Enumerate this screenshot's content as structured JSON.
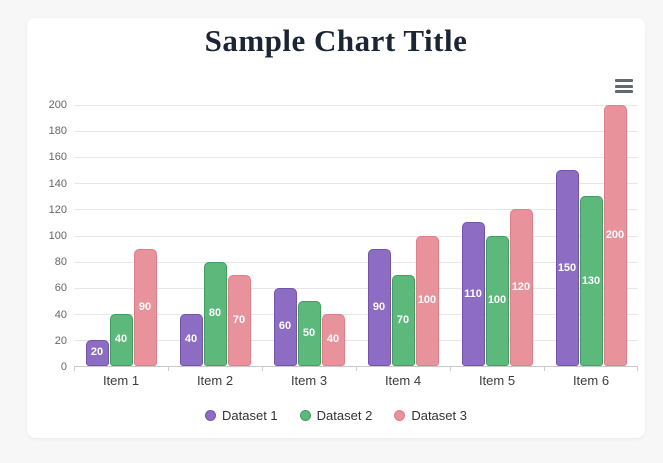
{
  "page": {
    "background_color": "#f7f7f7",
    "card_color": "#ffffff"
  },
  "header": {
    "title_color": "#1c2533"
  },
  "toolbar": {
    "menu_icon": "hamburger-menu-icon",
    "menu_icon_color": "#5f6a75"
  },
  "chart_data": {
    "type": "bar",
    "title": "Sample Chart Title",
    "categories": [
      "Item 1",
      "Item 2",
      "Item 3",
      "Item 4",
      "Item 5",
      "Item 6"
    ],
    "series": [
      {
        "name": "Dataset 1",
        "color": "#8d6cc4",
        "border_color": "#7353ab",
        "values": [
          20,
          40,
          60,
          90,
          110,
          150
        ]
      },
      {
        "name": "Dataset 2",
        "color": "#5cb87b",
        "border_color": "#3f9e60",
        "values": [
          40,
          80,
          50,
          70,
          100,
          130
        ]
      },
      {
        "name": "Dataset 3",
        "color": "#e8929c",
        "border_color": "#df7f8c",
        "values": [
          90,
          70,
          40,
          100,
          120,
          200
        ]
      }
    ],
    "xlabel": "",
    "ylabel": "",
    "ylim": [
      0,
      200
    ],
    "ytick_step": 20,
    "grid": true,
    "grid_color": "#e6e6e6",
    "legend_position": "bottom",
    "value_labels": "inside-center-white"
  }
}
